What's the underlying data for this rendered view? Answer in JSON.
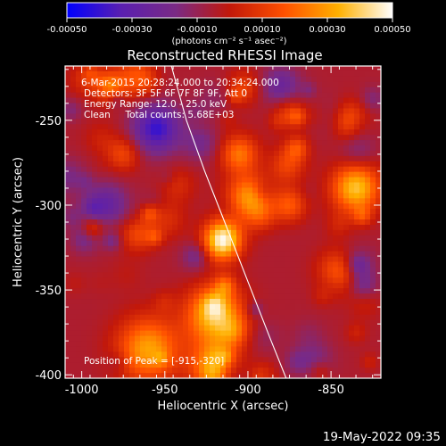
{
  "chart_data": {
    "type": "heatmap",
    "title": "Reconstructed RHESSI Image",
    "xlabel": "Heliocentric X (arcsec)",
    "ylabel": "Heliocentric Y (arcsec)",
    "x_ticks": [
      "-1000",
      "-950",
      "-900",
      "-850"
    ],
    "x_tick_values": [
      -1000,
      -950,
      -900,
      -850
    ],
    "y_ticks": [
      "-250",
      "-300",
      "-350",
      "-400"
    ],
    "y_tick_values": [
      -250,
      -300,
      -350,
      -400
    ],
    "xlim": [
      -1010,
      -820
    ],
    "ylim": [
      -402,
      -218
    ],
    "colorbar": {
      "ticks": [
        "-0.00050",
        "-0.00030",
        "-0.00010",
        "0.00010",
        "0.00030",
        "0.00050"
      ],
      "tick_values": [
        -0.0005,
        -0.0003,
        -0.0001,
        0.0001,
        0.0003,
        0.0005
      ],
      "range": [
        -0.0005,
        0.0005
      ],
      "unit_label": "(photons cm⁻² s⁻¹ asec⁻²)",
      "colors": [
        "#0000ff",
        "#5a1fb0",
        "#7a2a85",
        "#c2180a",
        "#ff5000",
        "#ffb000",
        "#ffffff"
      ]
    },
    "annotations": [
      "6-Mar-2015 20:28:24.000 to 20:34:24.000",
      "Detectors: 3F 5F 6F 7F 8F 9F, Att 0",
      "Energy Range: 12.0 - 25.0 keV",
      "Clean     Total counts: 5.68E+03",
      "Position of Peak = [-915,-320]"
    ],
    "peak_position": [
      -915,
      -320
    ],
    "limb_curve": {
      "x": [
        -946,
        -937,
        -926,
        -914,
        -900,
        -886,
        -877
      ],
      "y": [
        -218,
        -250,
        -280,
        -310,
        -345,
        -380,
        -402
      ]
    },
    "bright_sources": [
      {
        "x": -920,
        "y": -365,
        "sigma": 12,
        "amp": 0.00042
      },
      {
        "x": -915,
        "y": -320,
        "sigma": 8,
        "amp": 0.0005
      },
      {
        "x": -900,
        "y": -295,
        "sigma": 9,
        "amp": 0.00032
      },
      {
        "x": -905,
        "y": -270,
        "sigma": 8,
        "amp": 0.00026
      },
      {
        "x": -960,
        "y": -385,
        "sigma": 13,
        "amp": 0.00036
      },
      {
        "x": -920,
        "y": -395,
        "sigma": 10,
        "amp": 0.00035
      },
      {
        "x": -835,
        "y": -290,
        "sigma": 10,
        "amp": 0.00042
      },
      {
        "x": -840,
        "y": -250,
        "sigma": 8,
        "amp": 0.00028
      },
      {
        "x": -845,
        "y": -340,
        "sigma": 9,
        "amp": 0.00028
      },
      {
        "x": -985,
        "y": -230,
        "sigma": 6,
        "amp": 0.00022
      },
      {
        "x": -875,
        "y": -300,
        "sigma": 7,
        "amp": 0.00022
      },
      {
        "x": -975,
        "y": -270,
        "sigma": 7,
        "amp": 0.00018
      }
    ],
    "dark_regions": [
      {
        "x": -955,
        "y": -255,
        "sigma": 10,
        "amp": -0.00035
      },
      {
        "x": -985,
        "y": -300,
        "sigma": 9,
        "amp": -0.00022
      },
      {
        "x": -880,
        "y": -230,
        "sigma": 8,
        "amp": -0.0002
      }
    ]
  },
  "footer": {
    "timestamp": "19-May-2022 09:35"
  }
}
